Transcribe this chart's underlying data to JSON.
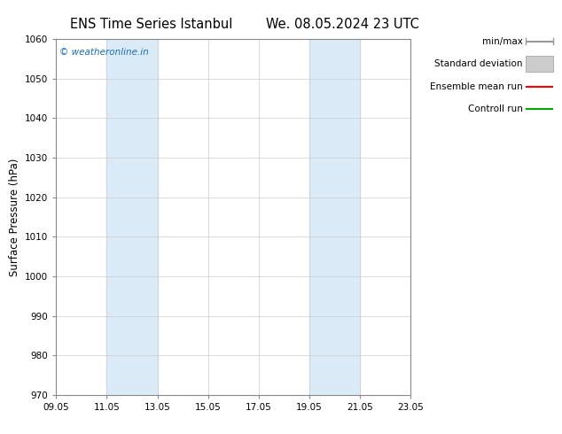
{
  "title_left": "ENS Time Series Istanbul",
  "title_right": "We. 08.05.2024 23 UTC",
  "ylabel": "Surface Pressure (hPa)",
  "ylim": [
    970,
    1060
  ],
  "yticks": [
    970,
    980,
    990,
    1000,
    1010,
    1020,
    1030,
    1040,
    1050,
    1060
  ],
  "xtick_labels": [
    "09.05",
    "11.05",
    "13.05",
    "15.05",
    "17.05",
    "19.05",
    "21.05",
    "23.05"
  ],
  "xtick_positions": [
    0,
    2,
    4,
    6,
    8,
    10,
    12,
    14
  ],
  "shaded_regions": [
    {
      "x_start": 2,
      "x_end": 4,
      "color": "#daeaf7"
    },
    {
      "x_start": 10,
      "x_end": 12,
      "color": "#daeaf7"
    }
  ],
  "watermark_text": "© weatheronline.in",
  "watermark_color": "#1a6eb5",
  "legend_items": [
    {
      "label": "min/max",
      "color": "#999999",
      "style": "line"
    },
    {
      "label": "Standard deviation",
      "color": "#cccccc",
      "style": "fill"
    },
    {
      "label": "Ensemble mean run",
      "color": "#ff0000",
      "style": "line"
    },
    {
      "label": "Controll run",
      "color": "#00aa00",
      "style": "line"
    }
  ],
  "background_color": "#ffffff",
  "grid_color": "#cccccc",
  "title_fontsize": 10.5,
  "tick_fontsize": 7.5,
  "ylabel_fontsize": 8.5,
  "legend_fontsize": 7.5
}
